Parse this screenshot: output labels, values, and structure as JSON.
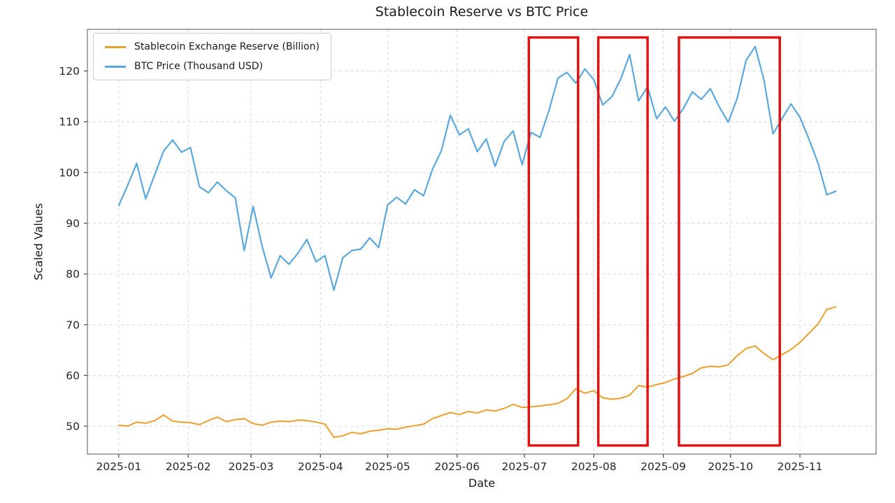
{
  "chart_data": {
    "type": "line",
    "title": "Stablecoin Reserve vs BTC Price",
    "xlabel": "Date",
    "ylabel": "Scaled Values",
    "grid": true,
    "legend_position": "upper-left",
    "ylim": [
      44.5,
      128.2
    ],
    "xlim_days": [
      -14,
      338
    ],
    "y_ticks": [
      50,
      60,
      70,
      80,
      90,
      100,
      110,
      120
    ],
    "x_ticks": [
      "2025-01",
      "2025-02",
      "2025-03",
      "2025-04",
      "2025-05",
      "2025-06",
      "2025-07",
      "2025-08",
      "2025-09",
      "2025-10",
      "2025-11"
    ],
    "x": [
      "2025-01-01",
      "2025-01-05",
      "2025-01-09",
      "2025-01-13",
      "2025-01-17",
      "2025-01-21",
      "2025-01-25",
      "2025-01-29",
      "2025-02-02",
      "2025-02-06",
      "2025-02-10",
      "2025-02-14",
      "2025-02-18",
      "2025-02-22",
      "2025-02-26",
      "2025-03-02",
      "2025-03-06",
      "2025-03-10",
      "2025-03-14",
      "2025-03-18",
      "2025-03-22",
      "2025-03-26",
      "2025-03-30",
      "2025-04-03",
      "2025-04-07",
      "2025-04-11",
      "2025-04-15",
      "2025-04-19",
      "2025-04-23",
      "2025-04-27",
      "2025-05-01",
      "2025-05-05",
      "2025-05-09",
      "2025-05-13",
      "2025-05-17",
      "2025-05-21",
      "2025-05-25",
      "2025-05-29",
      "2025-06-02",
      "2025-06-06",
      "2025-06-10",
      "2025-06-14",
      "2025-06-18",
      "2025-06-22",
      "2025-06-26",
      "2025-06-30",
      "2025-07-04",
      "2025-07-08",
      "2025-07-12",
      "2025-07-16",
      "2025-07-20",
      "2025-07-24",
      "2025-07-28",
      "2025-08-01",
      "2025-08-05",
      "2025-08-09",
      "2025-08-13",
      "2025-08-17",
      "2025-08-21",
      "2025-08-25",
      "2025-08-29",
      "2025-09-02",
      "2025-09-06",
      "2025-09-10",
      "2025-09-14",
      "2025-09-18",
      "2025-09-22",
      "2025-09-26",
      "2025-09-30",
      "2025-10-04",
      "2025-10-08",
      "2025-10-12",
      "2025-10-16",
      "2025-10-20",
      "2025-10-24",
      "2025-10-28",
      "2025-11-01",
      "2025-11-05",
      "2025-11-09",
      "2025-11-13",
      "2025-11-17"
    ],
    "series": [
      {
        "name": "Stablecoin Exchange Reserve (Billion)",
        "color": "#E8A02E",
        "line_width": 2,
        "values": [
          50.2,
          50.0,
          50.8,
          50.6,
          51.1,
          52.2,
          51.0,
          50.8,
          50.7,
          50.3,
          51.1,
          51.8,
          50.9,
          51.3,
          51.5,
          50.5,
          50.2,
          50.8,
          51.0,
          50.9,
          51.2,
          51.1,
          50.8,
          50.4,
          47.8,
          48.1,
          48.8,
          48.5,
          49.0,
          49.2,
          49.5,
          49.4,
          49.8,
          50.1,
          50.4,
          51.5,
          52.1,
          52.7,
          52.3,
          52.9,
          52.6,
          53.2,
          53.0,
          53.5,
          54.3,
          53.7,
          53.8,
          54.0,
          54.2,
          54.5,
          55.4,
          57.4,
          56.5,
          57.0,
          55.6,
          55.3,
          55.5,
          56.1,
          58.0,
          57.7,
          58.2,
          58.6,
          59.3,
          59.8,
          60.4,
          61.5,
          61.8,
          61.7,
          62.1,
          63.9,
          65.3,
          65.8,
          64.3,
          63.1,
          64.1,
          65.1,
          66.5,
          68.3,
          70.1,
          73.0,
          73.5
        ]
      },
      {
        "name": "BTC Price (Thousand USD)",
        "color": "#5BA8DC",
        "line_width": 2.2,
        "values": [
          93.5,
          97.5,
          101.8,
          94.8,
          99.5,
          104.2,
          106.4,
          104.0,
          104.9,
          97.2,
          96.0,
          98.1,
          96.4,
          95.0,
          84.6,
          93.3,
          85.4,
          79.2,
          83.6,
          81.9,
          84.1,
          86.8,
          82.4,
          83.6,
          76.8,
          83.2,
          84.6,
          84.9,
          87.1,
          85.2,
          93.6,
          95.1,
          93.8,
          96.6,
          95.4,
          100.6,
          104.3,
          111.3,
          107.4,
          108.6,
          104.1,
          106.6,
          101.2,
          106.1,
          108.2,
          101.5,
          107.9,
          106.9,
          112.2,
          118.6,
          119.7,
          117.6,
          120.4,
          118.3,
          113.3,
          114.9,
          118.4,
          123.2,
          114.1,
          116.9,
          110.6,
          112.9,
          110.1,
          112.6,
          115.9,
          114.4,
          116.5,
          112.9,
          109.9,
          114.6,
          122.1,
          124.8,
          118.1,
          107.6,
          110.6,
          113.5,
          110.9,
          106.6,
          101.9,
          95.6,
          96.3
        ]
      }
    ],
    "annotations": {
      "highlight_boxes": [
        {
          "x_start": "2025-07-03",
          "x_end": "2025-07-25",
          "y_bottom": 46.2,
          "y_top": 126.6,
          "color": "#E01212",
          "line_width": 3.5
        },
        {
          "x_start": "2025-08-03",
          "x_end": "2025-08-25",
          "y_bottom": 46.2,
          "y_top": 126.6,
          "color": "#E01212",
          "line_width": 3.5
        },
        {
          "x_start": "2025-09-08",
          "x_end": "2025-10-23",
          "y_bottom": 46.2,
          "y_top": 126.6,
          "color": "#E01212",
          "line_width": 3.5
        }
      ]
    },
    "colors": {
      "grid": "#d9d9d9",
      "spine": "#707070",
      "tick": "#404040",
      "background": "#ffffff"
    }
  }
}
